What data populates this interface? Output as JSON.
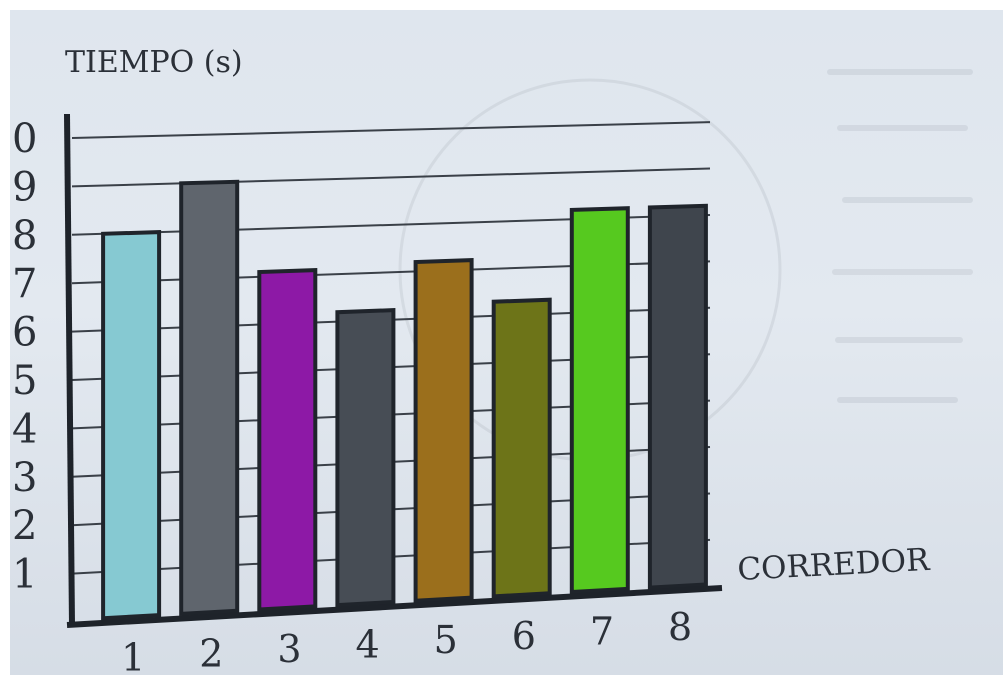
{
  "chart_data": {
    "type": "bar",
    "title": "",
    "ylabel": "TIEMPO (s)",
    "xlabel": "CORREDOR",
    "categories": [
      "1",
      "2",
      "3",
      "4",
      "5",
      "6",
      "7",
      "8"
    ],
    "values": [
      8.0,
      9.0,
      7.1,
      6.2,
      7.2,
      6.3,
      8.2,
      8.2
    ],
    "bar_colors": [
      "#86c9d2",
      "#5f656d",
      "#8d19a6",
      "#474d55",
      "#9b6f1c",
      "#6d7418",
      "#56c91f",
      "#3f454d"
    ],
    "y_tick_labels": [
      "1",
      "2",
      "3",
      "4",
      "5",
      "6",
      "7",
      "8",
      "9",
      "0"
    ],
    "ylim": [
      0,
      10
    ],
    "grid": true
  }
}
